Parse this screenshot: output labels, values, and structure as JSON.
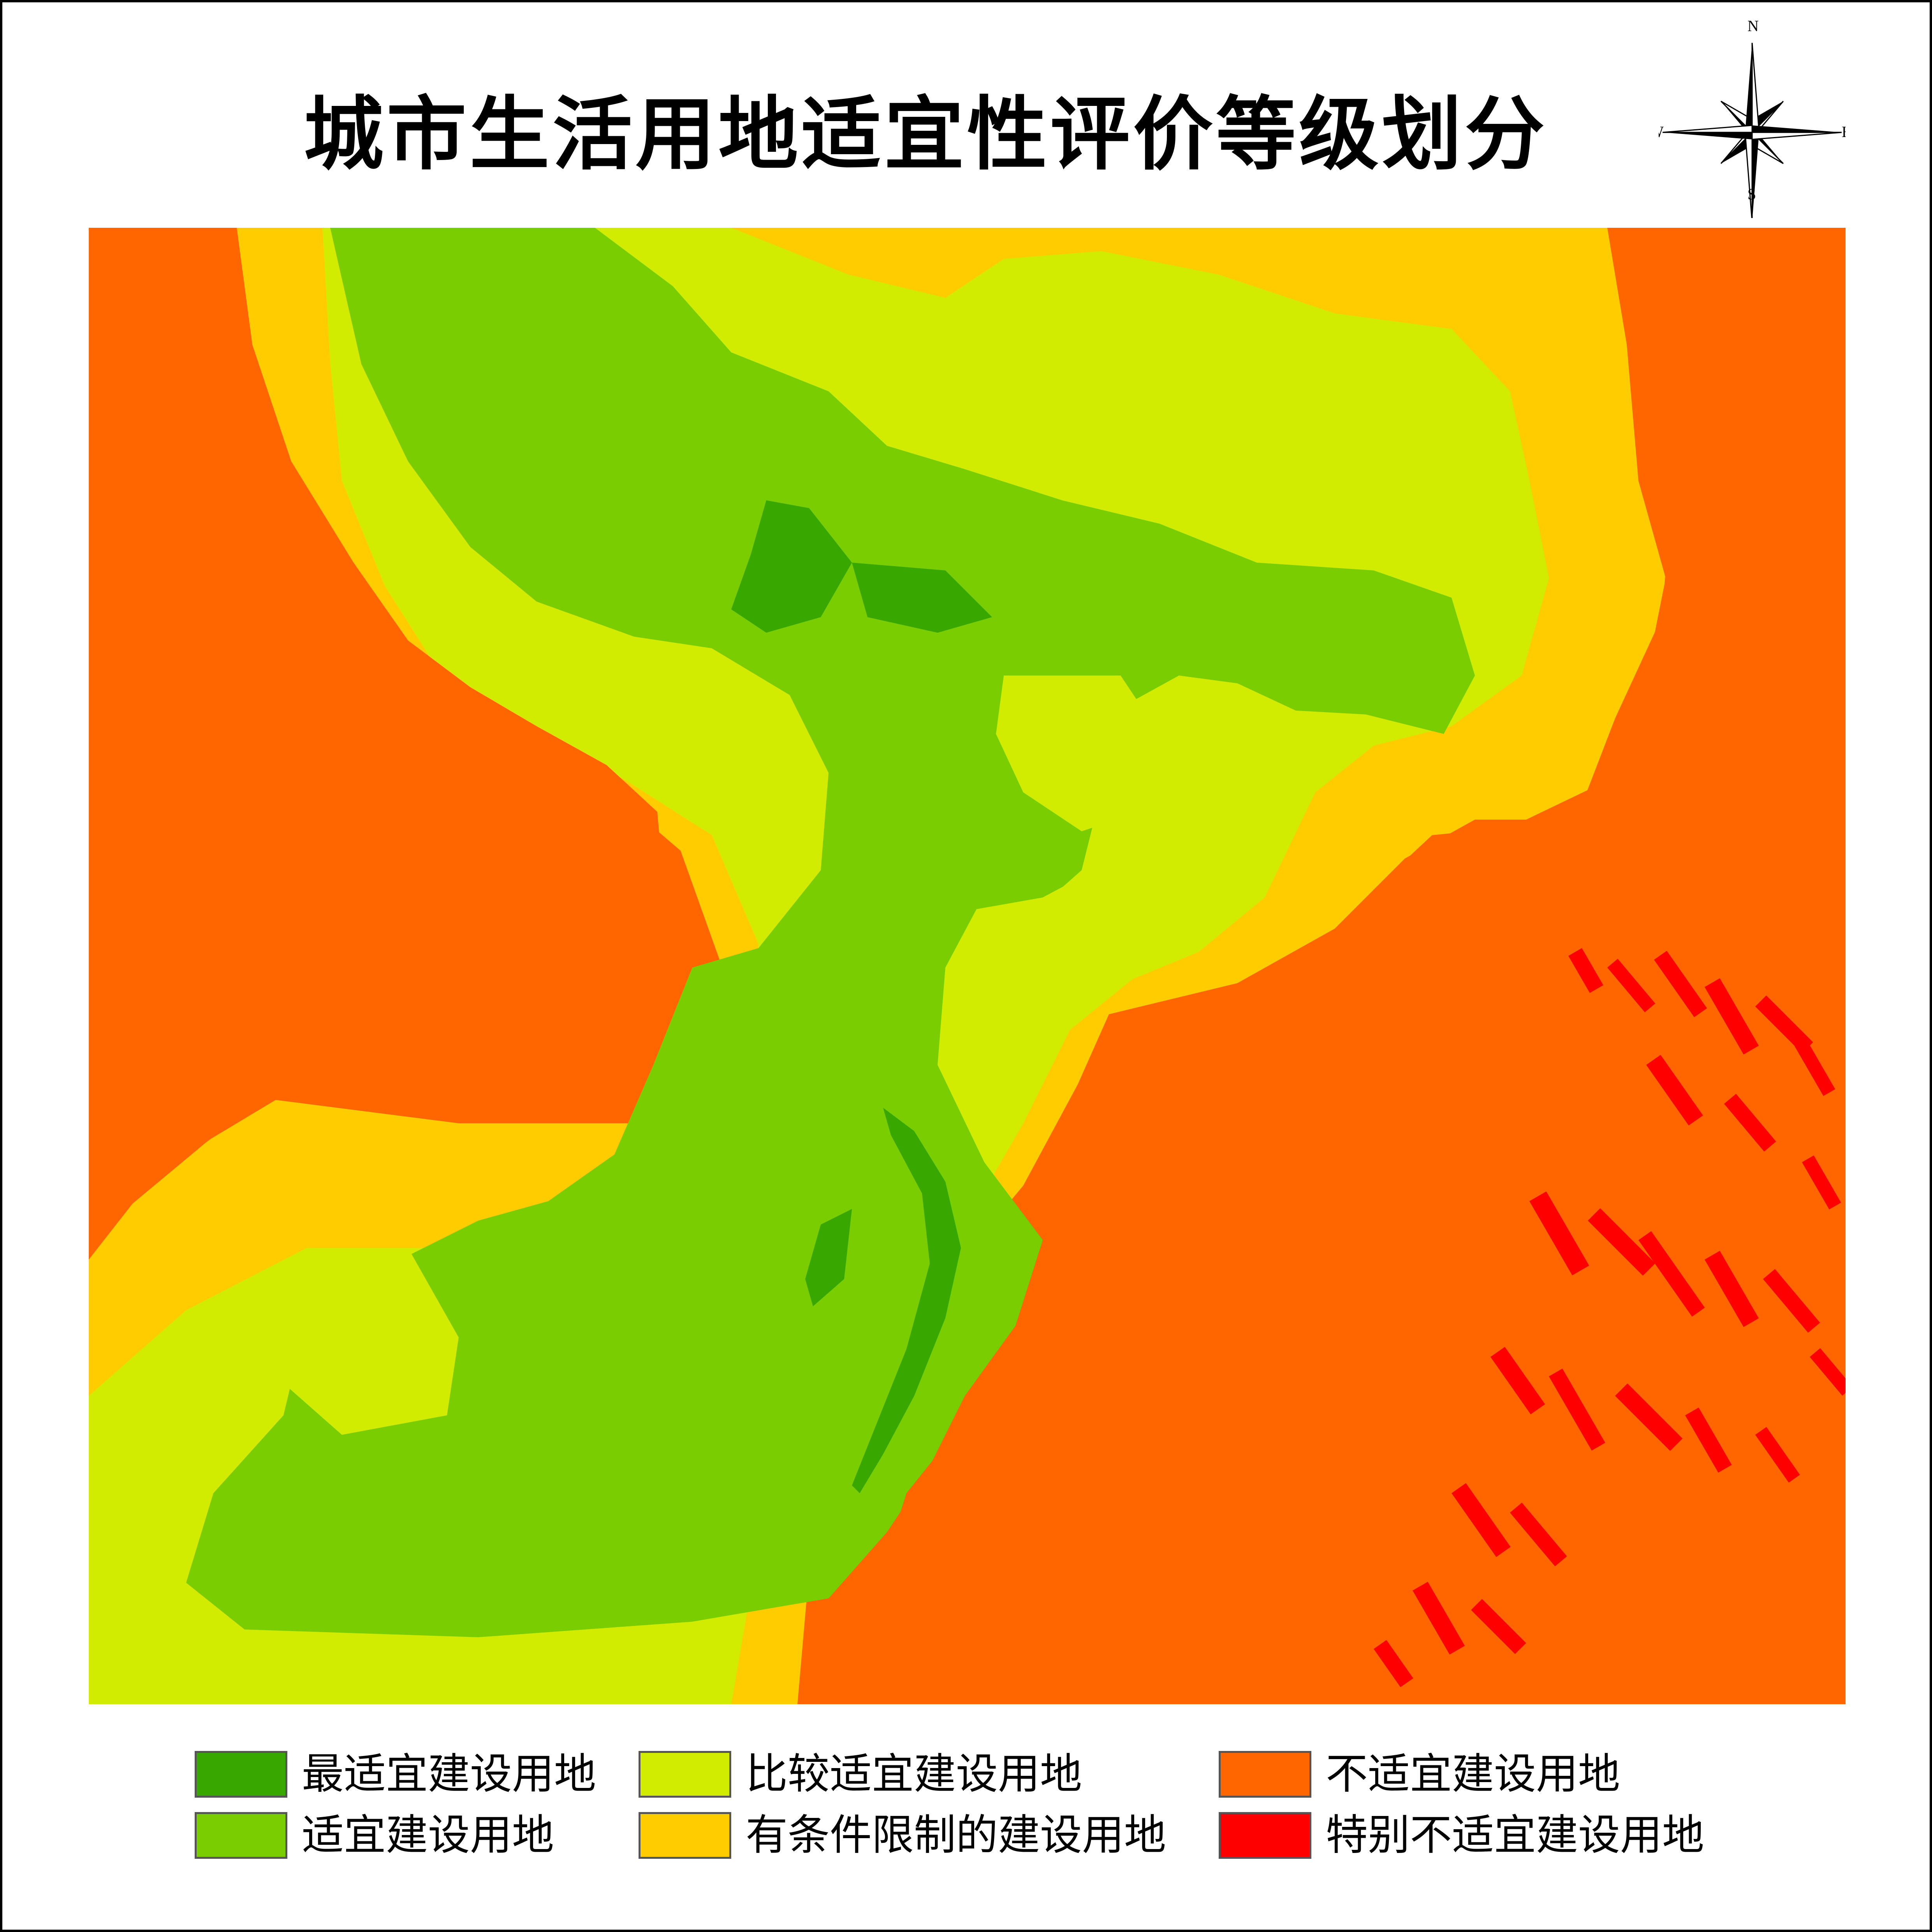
{
  "title": "城市生活用地适宜性评价等级划分",
  "compass": {
    "north": "N",
    "south": "S",
    "east": "E",
    "west": "W",
    "icon": "north-arrow-compass-rose"
  },
  "colors": {
    "best": "#38a800",
    "suitable": "#7acd00",
    "fairly": "#d1ec00",
    "conditional": "#ffcc00",
    "unsuitable": "#ff6600",
    "very_unsuitable": "#ff0000"
  },
  "legend": [
    {
      "label": "最适宜建设用地",
      "color": "#38a800"
    },
    {
      "label": "适宜建设用地",
      "color": "#7acd00"
    },
    {
      "label": "比较适宜建设用地",
      "color": "#d1ec00"
    },
    {
      "label": "有条件限制的建设用地",
      "color": "#ffcc00"
    },
    {
      "label": "不适宜建设用地",
      "color": "#ff6600"
    },
    {
      "label": "特别不适宜建设用地",
      "color": "#ff0000"
    }
  ]
}
